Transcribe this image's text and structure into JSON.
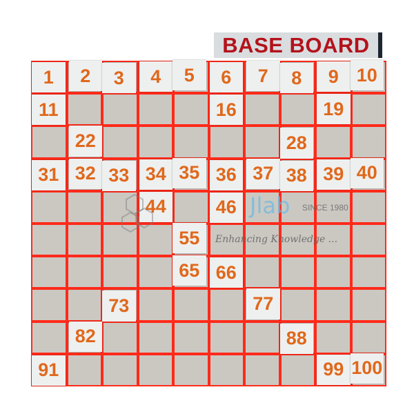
{
  "board_label": "BASE BOARD",
  "grid": {
    "rows": 10,
    "columns": 10
  },
  "tiles": [
    1,
    2,
    3,
    4,
    5,
    6,
    7,
    8,
    9,
    10,
    11,
    16,
    19,
    22,
    28,
    31,
    32,
    33,
    34,
    35,
    36,
    37,
    38,
    39,
    40,
    44,
    46,
    55,
    65,
    66,
    73,
    77,
    82,
    88,
    91,
    99,
    100
  ],
  "colors": {
    "grid_lines": "#ff2a1a",
    "tile_text": "#e0681c",
    "label_text": "#b3121b",
    "empty_cell": "#cbc8c2"
  },
  "watermark": {
    "logo": "Jlab",
    "since": "SINCE 1980",
    "tagline": "Enhancing Knowledge ..."
  }
}
